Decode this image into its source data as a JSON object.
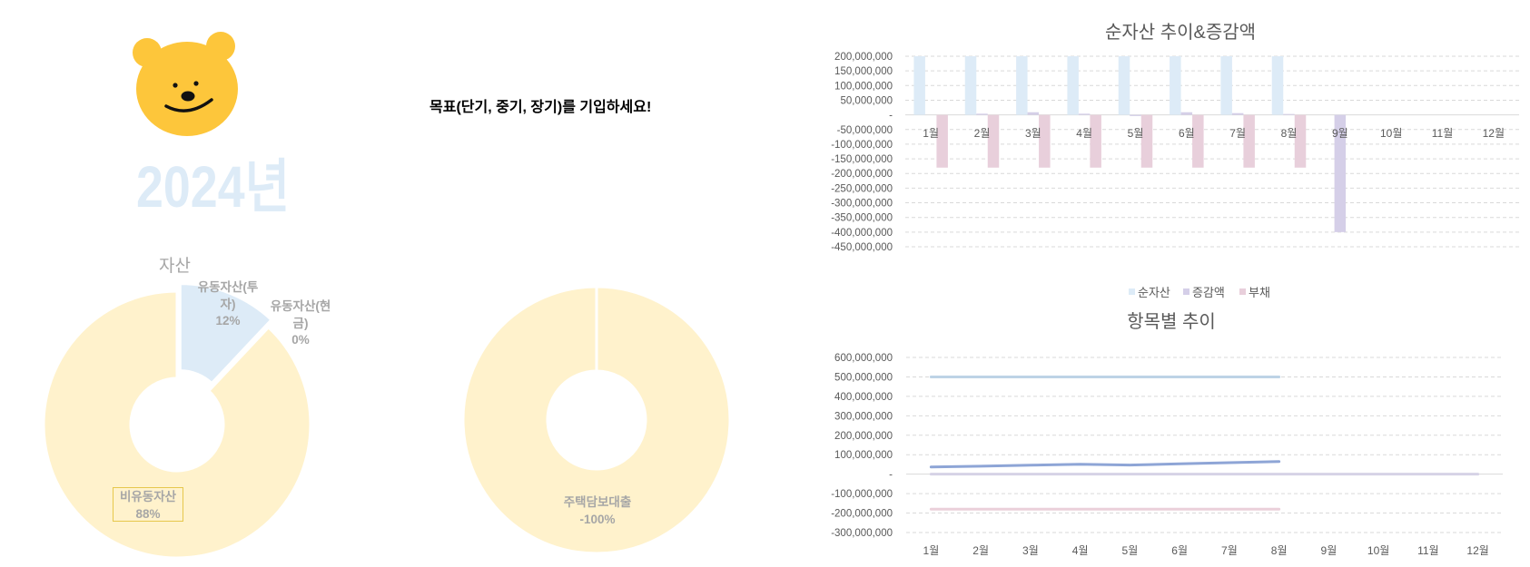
{
  "header": {
    "year": "2024년",
    "goal_prompt": "목표(단기, 중기, 장기)를 기입하세요!",
    "mascot_icon": "bear-face-icon"
  },
  "colors": {
    "pie_main": "#FFF2CC",
    "pie_accent": "#DDEBF7",
    "label_box_border": "#E6C74C",
    "label_text": "#A6A6A6",
    "axis_text": "#595959",
    "grid": "#D9D9D9",
    "year_text": "#DDEBF7",
    "bear": "#FDC63B"
  },
  "chart_data": [
    {
      "id": "asset-donut",
      "type": "pie",
      "donut": true,
      "title": "자산",
      "slices": [
        {
          "label": "유동자산(투자)",
          "label_lines": [
            "유동자산(투",
            "자)"
          ],
          "percent_label": "12%",
          "value": 12,
          "color": "#DDEBF7",
          "exploded": true
        },
        {
          "label": "유동자산(현금)",
          "label_lines": [
            "유동자산(현",
            "금)"
          ],
          "percent_label": "0%",
          "value": 0,
          "color": "#DDEBF7",
          "exploded": false
        },
        {
          "label": "비유동자산",
          "label_lines": [
            "비유동자산"
          ],
          "percent_label": "88%",
          "value": 88,
          "color": "#FFF2CC",
          "exploded": false,
          "boxed": true
        }
      ]
    },
    {
      "id": "liability-donut",
      "type": "pie",
      "donut": true,
      "title": "",
      "slices": [
        {
          "label": "주택담보대출",
          "label_lines": [
            "주택담보대출"
          ],
          "percent_label": "-100%",
          "value": -100,
          "color": "#FFF2CC"
        }
      ]
    },
    {
      "id": "net-asset-bar",
      "type": "bar",
      "title": "순자산 추이&증감액",
      "xlabel": "",
      "ylabel": "",
      "categories": [
        "1월",
        "2월",
        "3월",
        "4월",
        "5월",
        "6월",
        "7월",
        "8월",
        "9월",
        "10월",
        "11월",
        "12월"
      ],
      "series": [
        {
          "name": "순자산",
          "color": "#DDEBF7",
          "values": [
            200000000,
            200000000,
            200000000,
            200000000,
            200000000,
            200000000,
            200000000,
            200000000,
            null,
            null,
            null,
            null
          ]
        },
        {
          "name": "증감액",
          "color": "#D5CFE8",
          "values": [
            0,
            4000000,
            9000000,
            4000000,
            -4000000,
            9000000,
            6000000,
            3000000,
            -400000000,
            null,
            null,
            null
          ]
        },
        {
          "name": "부채",
          "color": "#E8CFDB",
          "values": [
            -180000000,
            -180000000,
            -180000000,
            -180000000,
            -180000000,
            -180000000,
            -180000000,
            -180000000,
            null,
            null,
            null,
            null
          ]
        }
      ],
      "ylim": [
        -450000000,
        200000000
      ],
      "yticks": [
        200000000,
        150000000,
        100000000,
        50000000,
        0,
        -50000000,
        -100000000,
        -150000000,
        -200000000,
        -250000000,
        -300000000,
        -350000000,
        -400000000,
        -450000000
      ],
      "ytick_labels": [
        "200,000,000",
        "150,000,000",
        "100,000,000",
        "50,000,000",
        "-",
        "-50,000,000",
        "-100,000,000",
        "-150,000,000",
        "-200,000,000",
        "-250,000,000",
        "-300,000,000",
        "-350,000,000",
        "-400,000,000",
        "-450,000,000"
      ],
      "grid": true,
      "legend_position": "bottom"
    },
    {
      "id": "item-trend-line",
      "type": "line",
      "title": "항목별 추이",
      "xlabel": "",
      "ylabel": "",
      "categories": [
        "1월",
        "2월",
        "3월",
        "4월",
        "5월",
        "6월",
        "7월",
        "8월",
        "9월",
        "10월",
        "11월",
        "12월"
      ],
      "series": [
        {
          "name": "",
          "color": "#BDD3E6",
          "values": [
            500000000,
            500000000,
            500000000,
            500000000,
            500000000,
            500000000,
            500000000,
            500000000,
            null,
            null,
            null,
            null
          ]
        },
        {
          "name": "",
          "color": "#8EA5D6",
          "values": [
            37000000,
            41000000,
            46000000,
            51000000,
            47000000,
            53000000,
            59000000,
            65000000,
            null,
            null,
            null,
            null
          ]
        },
        {
          "name": "",
          "color": "#D6D2E6",
          "values": [
            0,
            0,
            0,
            0,
            0,
            0,
            0,
            0,
            0,
            0,
            0,
            0
          ]
        },
        {
          "name": "",
          "color": "#EBD0DA",
          "values": [
            -180000000,
            -180000000,
            -180000000,
            -180000000,
            -180000000,
            -180000000,
            -180000000,
            -180000000,
            null,
            null,
            null,
            null
          ]
        }
      ],
      "ylim": [
        -300000000,
        600000000
      ],
      "yticks": [
        600000000,
        500000000,
        400000000,
        300000000,
        200000000,
        100000000,
        0,
        -100000000,
        -200000000,
        -300000000
      ],
      "ytick_labels": [
        "600,000,000",
        "500,000,000",
        "400,000,000",
        "300,000,000",
        "200,000,000",
        "100,000,000",
        "-",
        "-100,000,000",
        "-200,000,000",
        "-300,000,000"
      ],
      "grid": true,
      "legend_position": "none"
    }
  ]
}
